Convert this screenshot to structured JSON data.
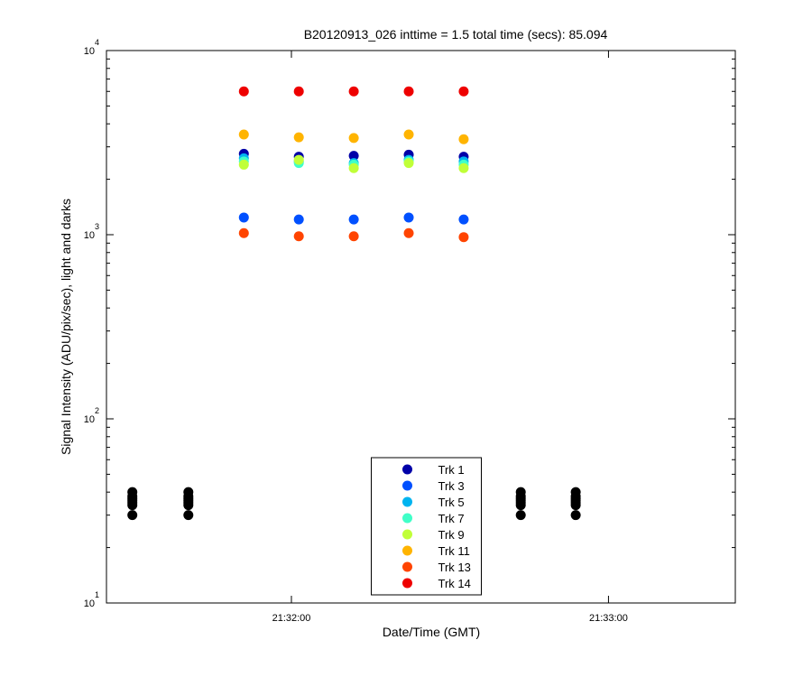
{
  "chart_data": {
    "type": "scatter",
    "title": "B20120913_026 inttime = 1.5 total time (secs): 85.094",
    "x_label": "Date/Time (GMT)",
    "y_label": "Signal Intensity (ADU/pix/sec), light and darks",
    "log_y": true,
    "xlim": [
      77485,
      77604
    ],
    "xticks": [
      {
        "value": 77520,
        "label": "21:32:00"
      },
      {
        "value": 77580,
        "label": "21:33:00"
      }
    ],
    "ylim": [
      10,
      10000
    ],
    "yticks": [
      {
        "value": 10,
        "label": "10",
        "exponent": "1"
      },
      {
        "value": 100,
        "label": "10",
        "exponent": "2"
      },
      {
        "value": 1000,
        "label": "10",
        "exponent": "3"
      },
      {
        "value": 10000,
        "label": "10",
        "exponent": "4"
      }
    ],
    "legend": "bottom-center",
    "x": [
      77511,
      77521.4,
      77531.8,
      77542.2,
      77552.6
    ],
    "series": [
      {
        "name": "Trk 1",
        "color": "#0000a8",
        "values": [
          2750,
          2650,
          2680,
          2720,
          2650
        ]
      },
      {
        "name": "Trk 3",
        "color": "#0050ff",
        "values": [
          1240,
          1210,
          1210,
          1240,
          1210
        ]
      },
      {
        "name": "Trk 5",
        "color": "#00b4f0",
        "values": [
          2600,
          2500,
          2450,
          2550,
          2500
        ]
      },
      {
        "name": "Trk 7",
        "color": "#40ffc8",
        "values": [
          2500,
          2450,
          2400,
          2500,
          2400
        ]
      },
      {
        "name": "Trk 9",
        "color": "#c0ff38",
        "values": [
          2400,
          2550,
          2300,
          2450,
          2300
        ]
      },
      {
        "name": "Trk 11",
        "color": "#ffb400",
        "values": [
          3500,
          3380,
          3350,
          3500,
          3300
        ]
      },
      {
        "name": "Trk 13",
        "color": "#ff4400",
        "values": [
          1020,
          980,
          980,
          1020,
          970
        ]
      },
      {
        "name": "Trk 14",
        "color": "#ee0000",
        "values": [
          6000,
          6000,
          6000,
          6000,
          6000
        ]
      }
    ],
    "darks": {
      "color": "#000000",
      "x": [
        77489.9,
        77489.9,
        77489.9,
        77489.9,
        77489.9,
        77489.9,
        77489.9,
        77500.5,
        77500.5,
        77500.5,
        77500.5,
        77500.5,
        77500.5,
        77500.5,
        77563.4,
        77563.4,
        77563.4,
        77563.4,
        77563.4,
        77563.4,
        77563.4,
        77573.8,
        77573.8,
        77573.8,
        77573.8,
        77573.8,
        77573.8,
        77573.8
      ],
      "values": [
        30,
        34,
        35,
        36,
        37,
        38,
        40,
        30,
        34,
        35,
        36,
        37,
        38,
        40,
        30,
        34,
        35,
        36,
        37,
        38,
        40,
        30,
        34,
        35,
        36,
        37,
        38,
        40
      ]
    }
  }
}
